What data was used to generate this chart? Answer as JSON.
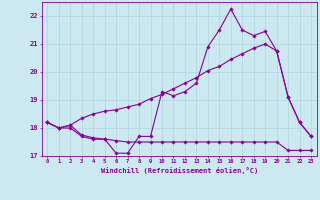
{
  "xlabel": "Windchill (Refroidissement éolien,°C)",
  "background_color": "#cce8f0",
  "grid_color": "#b0d4de",
  "line_color": "#880099",
  "x_values": [
    0,
    1,
    2,
    3,
    4,
    5,
    6,
    7,
    8,
    9,
    10,
    11,
    12,
    13,
    14,
    15,
    16,
    17,
    18,
    19,
    20,
    21,
    22,
    23
  ],
  "line1": [
    18.2,
    18.0,
    18.1,
    17.75,
    17.65,
    17.6,
    17.1,
    17.1,
    17.7,
    17.7,
    19.3,
    19.15,
    19.3,
    19.6,
    20.9,
    21.5,
    22.25,
    21.5,
    21.3,
    21.45,
    20.75,
    19.1,
    18.2,
    17.7
  ],
  "line2": [
    18.2,
    18.0,
    18.1,
    18.35,
    18.5,
    18.6,
    18.65,
    18.75,
    18.85,
    19.05,
    19.2,
    19.4,
    19.6,
    19.8,
    20.05,
    20.2,
    20.45,
    20.65,
    20.85,
    21.0,
    20.75,
    19.1,
    18.2,
    17.7
  ],
  "line3": [
    18.2,
    18.0,
    18.0,
    17.7,
    17.6,
    17.6,
    17.55,
    17.5,
    17.5,
    17.5,
    17.5,
    17.5,
    17.5,
    17.5,
    17.5,
    17.5,
    17.5,
    17.5,
    17.5,
    17.5,
    17.5,
    17.2,
    17.2,
    17.2
  ],
  "ylim": [
    17.0,
    22.5
  ],
  "yticks": [
    17,
    18,
    19,
    20,
    21,
    22
  ],
  "xticks": [
    0,
    1,
    2,
    3,
    4,
    5,
    6,
    7,
    8,
    9,
    10,
    11,
    12,
    13,
    14,
    15,
    16,
    17,
    18,
    19,
    20,
    21,
    22,
    23
  ],
  "xlim": [
    -0.5,
    23.5
  ]
}
